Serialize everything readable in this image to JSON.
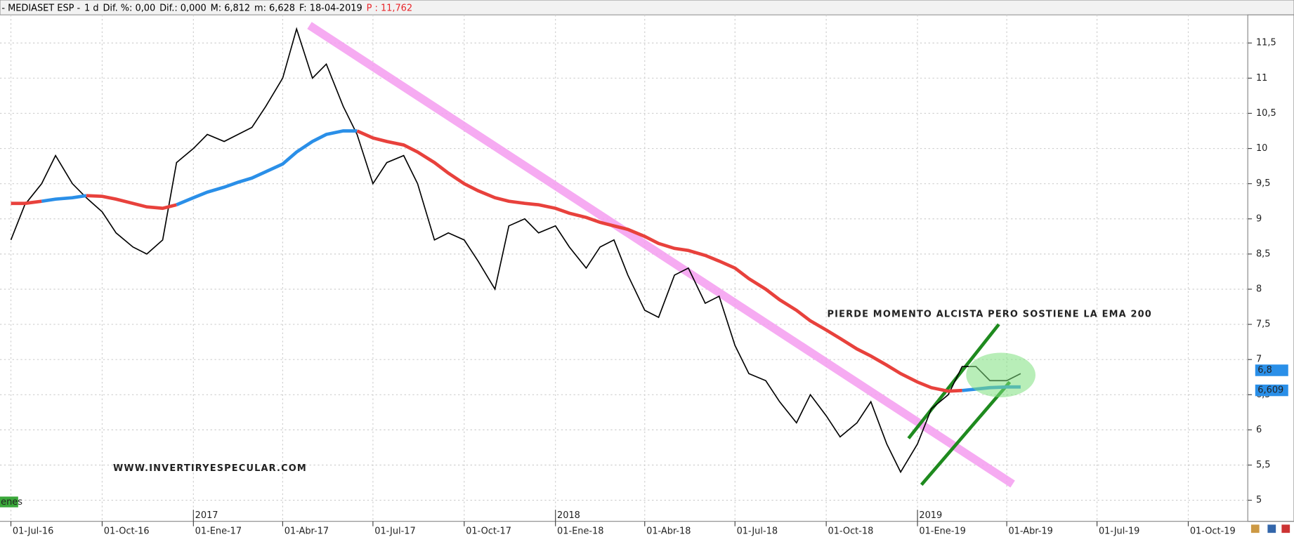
{
  "chart_data": {
    "type": "line",
    "header": [
      "- MEDIASET ESP -",
      "1 d",
      "Dif. %: 0,00",
      "Dif.: 0,000",
      "M: 6,812",
      "m: 6,628",
      "F: 18-04-2019",
      "P : 11,762"
    ],
    "header_colors": [
      "#000000",
      "#000000",
      "#000000",
      "#000000",
      "#000000",
      "#000000",
      "#000000",
      "#e8262a"
    ],
    "annotations": [
      {
        "text": "PIERDE MOMENTO ALCISTA PERO SOSTIENE LA EMA 200",
        "x": "2018-10-02",
        "y": 7.64
      },
      {
        "text": "WWW.INVERTIRYESPECULAR.COM",
        "x": "2016-10-12",
        "y": 5.45
      }
    ],
    "volume_label": "enes",
    "x": [
      "2016-07-01",
      "2016-07-15",
      "2016-08-01",
      "2016-08-15",
      "2016-09-01",
      "2016-09-15",
      "2016-10-01",
      "2016-10-15",
      "2016-11-01",
      "2016-11-15",
      "2016-12-01",
      "2016-12-15",
      "2017-01-01",
      "2017-01-15",
      "2017-02-01",
      "2017-02-15",
      "2017-03-01",
      "2017-03-15",
      "2017-04-01",
      "2017-04-15",
      "2017-05-01",
      "2017-05-15",
      "2017-06-01",
      "2017-06-15",
      "2017-07-01",
      "2017-07-15",
      "2017-08-01",
      "2017-08-15",
      "2017-09-01",
      "2017-09-15",
      "2017-10-01",
      "2017-10-15",
      "2017-11-01",
      "2017-11-15",
      "2017-12-01",
      "2017-12-15",
      "2018-01-01",
      "2018-01-15",
      "2018-02-01",
      "2018-02-15",
      "2018-03-01",
      "2018-03-15",
      "2018-04-01",
      "2018-04-15",
      "2018-05-01",
      "2018-05-15",
      "2018-06-01",
      "2018-06-15",
      "2018-07-01",
      "2018-07-15",
      "2018-08-01",
      "2018-08-15",
      "2018-09-01",
      "2018-09-15",
      "2018-10-01",
      "2018-10-15",
      "2018-11-01",
      "2018-11-15",
      "2018-12-01",
      "2018-12-15",
      "2019-01-01",
      "2019-01-15",
      "2019-02-01",
      "2019-02-15",
      "2019-03-01",
      "2019-03-15",
      "2019-04-01",
      "2019-04-15"
    ],
    "series": [
      {
        "color": "#000000",
        "values": [
          8.7,
          9.2,
          9.5,
          9.9,
          9.5,
          9.3,
          9.1,
          8.8,
          8.6,
          8.5,
          8.7,
          9.8,
          10.0,
          10.2,
          10.1,
          10.2,
          10.3,
          10.6,
          11.0,
          11.7,
          11.0,
          11.2,
          10.6,
          10.2,
          9.5,
          9.8,
          9.9,
          9.5,
          8.7,
          8.8,
          8.7,
          8.4,
          8.0,
          8.9,
          9.0,
          8.8,
          8.9,
          8.6,
          8.3,
          8.6,
          8.7,
          8.2,
          7.7,
          7.6,
          8.2,
          8.3,
          7.8,
          7.9,
          7.2,
          6.8,
          6.7,
          6.4,
          6.1,
          6.5,
          6.2,
          5.9,
          6.1,
          6.4,
          5.8,
          5.4,
          5.8,
          6.3,
          6.5,
          6.9,
          6.9,
          6.7,
          6.7,
          6.8
        ]
      },
      {
        "color": "#e8413c",
        "color_above": "#2a8fe8",
        "values": [
          9.22,
          9.22,
          9.25,
          9.28,
          9.3,
          9.33,
          9.32,
          9.28,
          9.22,
          9.17,
          9.15,
          9.2,
          9.3,
          9.38,
          9.45,
          9.52,
          9.58,
          9.67,
          9.78,
          9.95,
          10.1,
          10.2,
          10.25,
          10.25,
          10.15,
          10.1,
          10.05,
          9.95,
          9.8,
          9.65,
          9.5,
          9.4,
          9.3,
          9.25,
          9.22,
          9.2,
          9.15,
          9.08,
          9.02,
          8.95,
          8.9,
          8.85,
          8.75,
          8.65,
          8.58,
          8.55,
          8.48,
          8.4,
          8.3,
          8.15,
          8.0,
          7.85,
          7.7,
          7.55,
          7.42,
          7.3,
          7.15,
          7.05,
          6.92,
          6.8,
          6.68,
          6.6,
          6.55,
          6.56,
          6.58,
          6.6,
          6.61,
          6.61
        ]
      }
    ],
    "trendlines": [
      {
        "x": [
          "2017-04-28",
          "2019-04-07"
        ],
        "y": [
          11.75,
          5.23
        ],
        "color": "#f49cf0"
      },
      {
        "x": [
          "2018-12-23",
          "2019-03-24"
        ],
        "y": [
          5.88,
          7.5
        ],
        "color": "#1e8a1e"
      },
      {
        "x": [
          "2019-01-05",
          "2019-04-04"
        ],
        "y": [
          5.22,
          6.68
        ],
        "color": "#1e8a1e"
      }
    ],
    "highlight": {
      "x": "2019-03-26",
      "y": 6.78,
      "color": "#7ee07e"
    },
    "last_labels": [
      {
        "value": 6.8,
        "label": "6,8"
      },
      {
        "value": 6.609,
        "label": "6,609"
      }
    ],
    "xlim": [
      "2016-06-20",
      "2019-11-30"
    ],
    "ylim": [
      4.7,
      11.9
    ],
    "yticks": [
      5,
      {
        "value": 5.5,
        "label": "5,5"
      },
      6,
      {
        "value": 6.5,
        "label": "6,5"
      },
      7,
      {
        "value": 7.5,
        "label": "7,5"
      },
      8,
      {
        "value": 8.5,
        "label": "8,5"
      },
      9,
      {
        "value": 9.5,
        "label": "9,5"
      },
      10,
      {
        "value": 10.5,
        "label": "10,5"
      },
      11,
      {
        "value": 11.5,
        "label": "11,5"
      }
    ],
    "xticks": [
      {
        "value": "2016-07-01",
        "label": "01-Jul-16"
      },
      {
        "value": "2016-10-01",
        "label": "01-Oct-16"
      },
      {
        "value": "2017-01-01",
        "label": "01-Ene-17"
      },
      {
        "value": "2017-04-01",
        "label": "01-Abr-17"
      },
      {
        "value": "2017-07-01",
        "label": "01-Jul-17"
      },
      {
        "value": "2017-10-01",
        "label": "01-Oct-17"
      },
      {
        "value": "2018-01-01",
        "label": "01-Ene-18"
      },
      {
        "value": "2018-04-01",
        "label": "01-Abr-18"
      },
      {
        "value": "2018-07-01",
        "label": "01-Jul-18"
      },
      {
        "value": "2018-10-01",
        "label": "01-Oct-18"
      },
      {
        "value": "2019-01-01",
        "label": "01-Ene-19"
      },
      {
        "value": "2019-04-01",
        "label": "01-Abr-19"
      },
      {
        "value": "2019-07-01",
        "label": "01-Jul-19"
      },
      {
        "value": "2019-10-01",
        "label": "01-Oct-19"
      }
    ],
    "year_ticks": [
      {
        "value": "2017-01-01",
        "label": "2017"
      },
      {
        "value": "2018-01-01",
        "label": "2018"
      },
      {
        "value": "2019-01-01",
        "label": "2019"
      }
    ],
    "grid": true
  }
}
